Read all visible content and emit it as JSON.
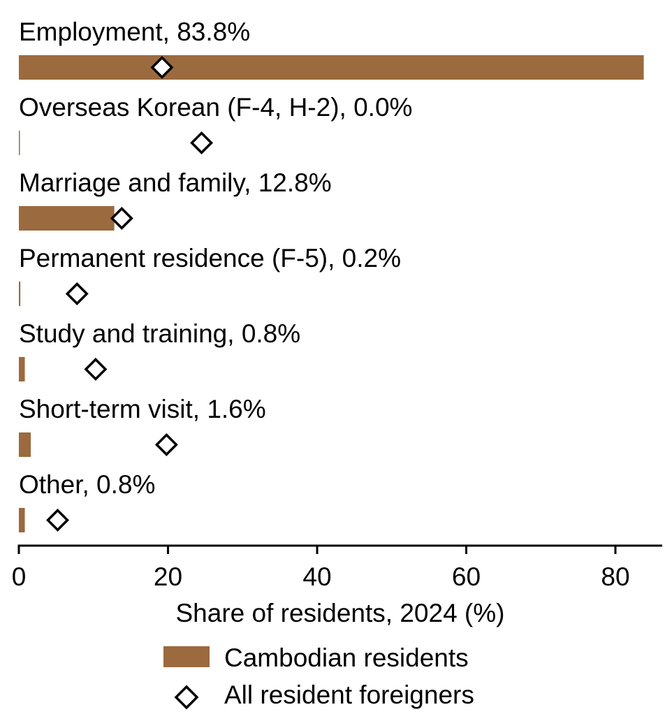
{
  "chart_data": {
    "type": "bar",
    "orientation": "horizontal",
    "xlabel": "Share of residents, 2024 (%)",
    "xlim": [
      0,
      86
    ],
    "xticks": [
      0,
      20,
      40,
      60,
      80
    ],
    "grid": false,
    "legend_position": "bottom-center",
    "colors": {
      "bar": "#9b6a3e",
      "marker_fill": "#ffffff",
      "marker_stroke": "#000000"
    },
    "categories": [
      "Employment, 83.8%",
      "Overseas Korean (F-4, H-2), 0.0%",
      "Marriage and family, 12.8%",
      "Permanent residence (F-5), 0.2%",
      "Study and training, 0.8%",
      "Short-term visit, 1.6%",
      "Other, 0.8%"
    ],
    "series": [
      {
        "name": "Cambodian residents",
        "kind": "bar",
        "values": [
          83.8,
          0.0,
          12.8,
          0.2,
          0.8,
          1.6,
          0.8
        ]
      },
      {
        "name": "All resident foreigners",
        "kind": "diamond-marker",
        "values": [
          19.2,
          24.5,
          13.8,
          7.8,
          10.3,
          19.8,
          5.2
        ]
      }
    ]
  }
}
